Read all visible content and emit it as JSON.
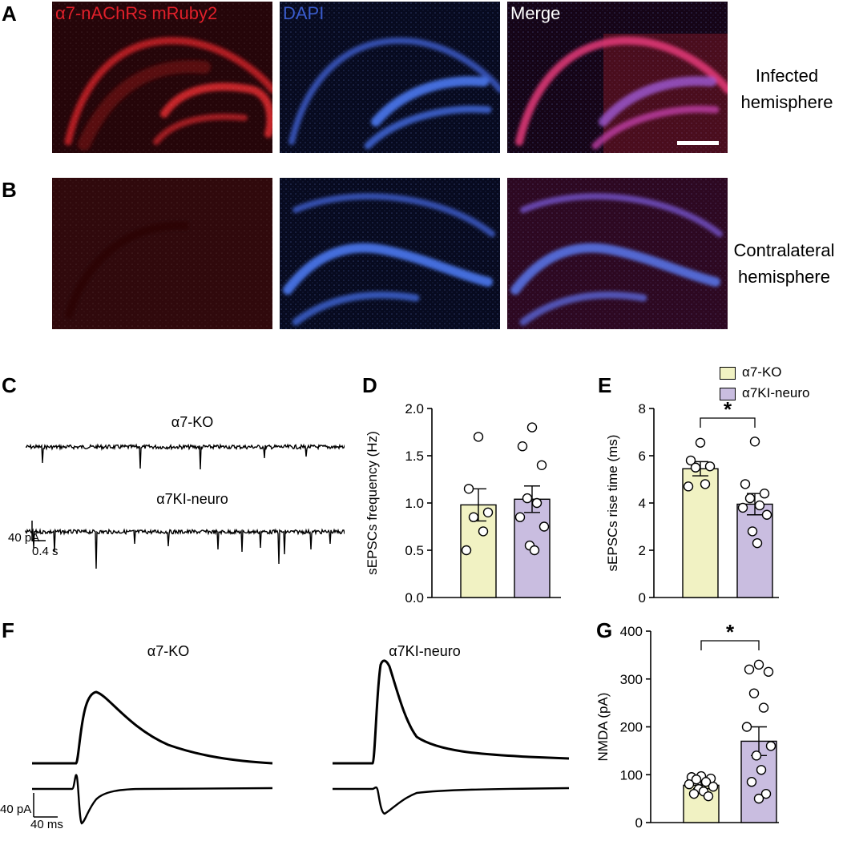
{
  "panels": {
    "A": "A",
    "B": "B",
    "C": "C",
    "D": "D",
    "E": "E",
    "F": "F",
    "G": "G"
  },
  "micrographs": {
    "col1_title": "α7-nAChRs mRuby2",
    "col2_title": "DAPI",
    "col3_title": "Merge",
    "row1_side_line1": "Infected",
    "row1_side_line2": "hemisphere",
    "row2_side_line1": "Contralateral",
    "row2_side_line2": "hemisphere",
    "colors": {
      "red": "#e0202a",
      "blue": "#3a5ccc",
      "magenta": "#e0305f"
    }
  },
  "traces": {
    "c_group1": "α7-KO",
    "c_group2": "α7KI-neuro",
    "c_scale_y": "40 pA",
    "c_scale_x": "0.4 s",
    "f_group1": "α7-KO",
    "f_group2": "α7KI-neuro",
    "f_scale_y": "40 pA",
    "f_scale_x": "40 ms"
  },
  "legend": {
    "items": [
      {
        "name": "α7-KO",
        "color": "#f1f2c3"
      },
      {
        "name": "α7KI-neuro",
        "color": "#c9bde0"
      }
    ]
  },
  "chart_data": [
    {
      "panel": "D",
      "type": "bar",
      "ylabel": "sEPSCs frequency (Hz)",
      "ylim": [
        0,
        2.0
      ],
      "yticks": [
        "0.0",
        "0.5",
        "1.0",
        "1.5",
        "2.0"
      ],
      "categories": [
        "α7-KO",
        "α7KI-neuro"
      ],
      "series": [
        {
          "name": "α7-KO",
          "mean": 0.98,
          "sem": 0.17,
          "color": "#f1f2c3",
          "points": [
            1.7,
            1.15,
            0.9,
            0.85,
            0.7,
            0.5
          ]
        },
        {
          "name": "α7KI-neuro",
          "mean": 1.04,
          "sem": 0.14,
          "color": "#c9bde0",
          "points": [
            1.8,
            1.6,
            1.4,
            1.05,
            1.0,
            0.85,
            0.75,
            0.55,
            0.5
          ]
        }
      ],
      "significance": ""
    },
    {
      "panel": "E",
      "type": "bar",
      "ylabel": "sEPSCs rise time (ms)",
      "ylim": [
        0,
        8
      ],
      "yticks": [
        "0",
        "2",
        "4",
        "6",
        "8"
      ],
      "categories": [
        "α7-KO",
        "α7KI-neuro"
      ],
      "series": [
        {
          "name": "α7-KO",
          "mean": 5.45,
          "sem": 0.3,
          "color": "#f1f2c3",
          "points": [
            6.55,
            5.8,
            5.55,
            5.5,
            4.8,
            4.7
          ]
        },
        {
          "name": "α7KI-neuro",
          "mean": 3.95,
          "sem": 0.45,
          "color": "#c9bde0",
          "points": [
            6.6,
            4.8,
            4.4,
            4.2,
            3.9,
            3.8,
            3.5,
            2.8,
            2.3
          ]
        }
      ],
      "significance": "*"
    },
    {
      "panel": "G",
      "type": "bar",
      "ylabel": "NMDA (pA)",
      "ylim": [
        0,
        400
      ],
      "yticks": [
        "0",
        "100",
        "200",
        "300",
        "400"
      ],
      "categories": [
        "α7-KO",
        "α7KI-neuro"
      ],
      "series": [
        {
          "name": "α7-KO",
          "mean": 78,
          "sem": 7,
          "color": "#f1f2c3",
          "points": [
            97,
            95,
            92,
            90,
            85,
            80,
            75,
            70,
            65,
            60,
            55
          ]
        },
        {
          "name": "α7KI-neuro",
          "mean": 170,
          "sem": 30,
          "color": "#c9bde0",
          "points": [
            330,
            320,
            315,
            270,
            240,
            200,
            160,
            140,
            110,
            85,
            60,
            50
          ]
        }
      ],
      "significance": "*"
    }
  ]
}
